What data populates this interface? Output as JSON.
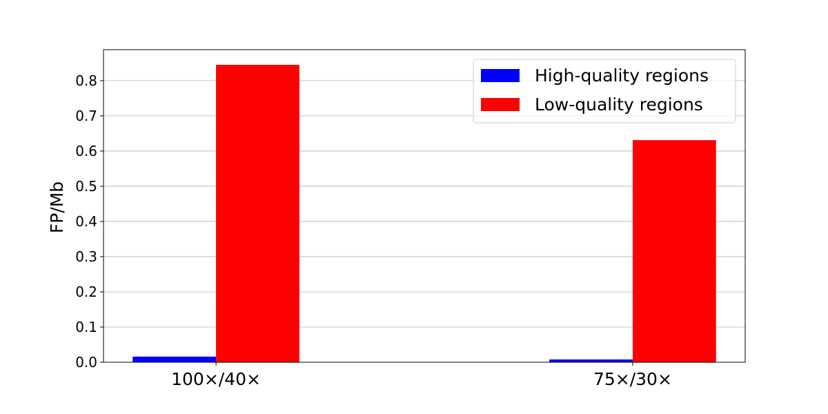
{
  "chart_data": {
    "type": "bar",
    "title": "",
    "xlabel": "",
    "ylabel": "FP/Mb",
    "categories": [
      "100×/40×",
      "75×/30×"
    ],
    "series": [
      {
        "name": "High-quality regions",
        "color": "#0000ff",
        "values": [
          0.016,
          0.008
        ]
      },
      {
        "name": "Low-quality regions",
        "color": "#ff0000",
        "values": [
          0.845,
          0.631
        ]
      }
    ],
    "ylim": [
      0,
      0.888
    ],
    "yticks": [
      "0.0",
      "0.1",
      "0.2",
      "0.3",
      "0.4",
      "0.5",
      "0.6",
      "0.7",
      "0.8"
    ],
    "grid": "y",
    "legend_position": "top-right"
  }
}
